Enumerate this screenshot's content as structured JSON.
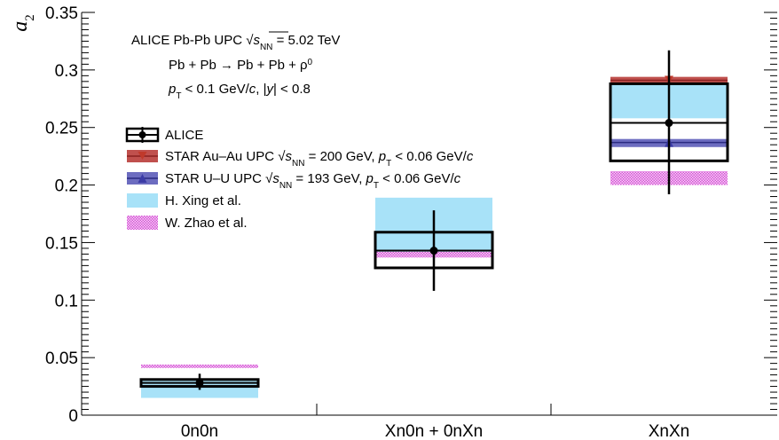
{
  "chart_data": {
    "type": "scatter",
    "title": "",
    "xlabel": "",
    "ylabel": "a2",
    "ylim": [
      0,
      0.35
    ],
    "yticks": [
      "0",
      "0.05",
      "0.1",
      "0.15",
      "0.2",
      "0.25",
      "0.3",
      "0.35"
    ],
    "categories": [
      "0n0n",
      "Xn0n + 0nXn",
      "XnXn"
    ],
    "annotations": {
      "line1": "ALICE Pb-Pb UPC √sNN = 5.02 TeV",
      "line2": "Pb + Pb → Pb + Pb + ρ0",
      "line3": "pT < 0.1 GeV/c, |y| < 0.8"
    },
    "series": [
      {
        "name": "ALICE",
        "color": "#000000",
        "points": [
          {
            "category": "0n0n",
            "y": 0.028,
            "stat": [
              0.022,
              0.036
            ],
            "syst": [
              0.025,
              0.031
            ]
          },
          {
            "category": "Xn0n + 0nXn",
            "y": 0.143,
            "stat": [
              0.108,
              0.178
            ],
            "syst": [
              0.128,
              0.159
            ]
          },
          {
            "category": "XnXn",
            "y": 0.254,
            "stat": [
              0.192,
              0.317
            ],
            "syst": [
              0.221,
              0.288
            ]
          }
        ]
      },
      {
        "name": "STAR Au–Au UPC √sNN = 200 GeV, pT < 0.06 GeV/c",
        "color": "#c0392b",
        "band_color": "#c0504d",
        "points": [
          {
            "category": "XnXn",
            "y": 0.291,
            "band": [
              0.288,
              0.294
            ]
          }
        ]
      },
      {
        "name": "STAR U–U UPC √sNN = 193 GeV, pT < 0.06 GeV/c",
        "color": "#3b3ba6",
        "band_color": "#6c6cc0",
        "points": [
          {
            "category": "XnXn",
            "y": 0.237,
            "band": [
              0.233,
              0.24
            ]
          }
        ]
      },
      {
        "name": "H. Xing et al.",
        "color": "#a8e2f8",
        "bands": [
          {
            "category": "0n0n",
            "range": [
              0.015,
              0.03
            ]
          },
          {
            "category": "Xn0n + 0nXn",
            "range": [
              0.138,
              0.189
            ]
          },
          {
            "category": "XnXn",
            "range": [
              0.258,
              0.289
            ]
          }
        ]
      },
      {
        "name": "W. Zhao et al.",
        "color": "#e070e0",
        "bands": [
          {
            "category": "0n0n",
            "range": [
              0.041,
              0.044
            ]
          },
          {
            "category": "Xn0n + 0nXn",
            "range": [
              0.137,
              0.142
            ]
          },
          {
            "category": "XnXn",
            "range": [
              0.2,
              0.212
            ]
          }
        ]
      }
    ]
  },
  "legend": {
    "alice": "ALICE",
    "star_au": "STAR Au–Au UPC √sNN = 200 GeV, pT < 0.06 GeV/c",
    "star_u": "STAR U–U UPC √sNN = 193 GeV, pT < 0.06 GeV/c",
    "xing": "H. Xing et al.",
    "zhao": "W. Zhao et al."
  }
}
